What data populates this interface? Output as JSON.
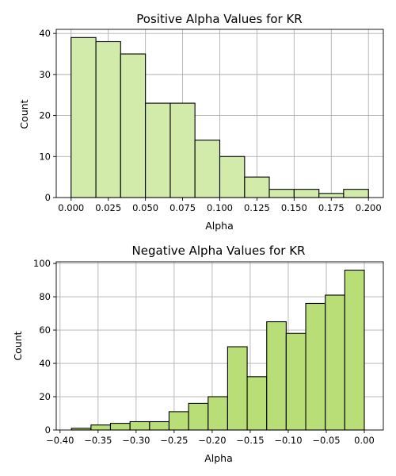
{
  "chart_data": [
    {
      "type": "bar",
      "title": "Positive Alpha Values for KR",
      "xlabel": "Alpha",
      "ylabel": "Count",
      "xlim": [
        -0.01,
        0.21
      ],
      "ylim": [
        0,
        41
      ],
      "xticks": [
        0.0,
        0.025,
        0.05,
        0.075,
        0.1,
        0.125,
        0.15,
        0.175,
        0.2
      ],
      "xtick_labels": [
        "0.000",
        "0.025",
        "0.050",
        "0.075",
        "0.100",
        "0.125",
        "0.150",
        "0.175",
        "0.200"
      ],
      "yticks": [
        0,
        10,
        20,
        30,
        40
      ],
      "ytick_labels": [
        "0",
        "10",
        "20",
        "30",
        "40"
      ],
      "bin_edges": [
        0.0,
        0.0167,
        0.0333,
        0.05,
        0.0667,
        0.0833,
        0.1,
        0.1167,
        0.1333,
        0.15,
        0.1667,
        0.1833,
        0.2
      ],
      "values": [
        39,
        38,
        35,
        23,
        23,
        14,
        10,
        5,
        2,
        2,
        1,
        2
      ],
      "color": "#d2ebaa",
      "grid": true
    },
    {
      "type": "bar",
      "title": "Negative Alpha Values for KR",
      "xlabel": "Alpha",
      "ylabel": "Count",
      "xlim": [
        -0.405,
        0.025
      ],
      "ylim": [
        0,
        101
      ],
      "xticks": [
        -0.4,
        -0.35,
        -0.3,
        -0.25,
        -0.2,
        -0.15,
        -0.1,
        -0.05,
        0.0
      ],
      "xtick_labels": [
        "−0.40",
        "−0.35",
        "−0.30",
        "−0.25",
        "−0.20",
        "−0.15",
        "−0.10",
        "−0.05",
        "0.00"
      ],
      "yticks": [
        0,
        20,
        40,
        60,
        80,
        100
      ],
      "ytick_labels": [
        "0",
        "20",
        "40",
        "60",
        "80",
        "100"
      ],
      "bin_edges": [
        -0.385,
        -0.3593,
        -0.3337,
        -0.308,
        -0.2823,
        -0.2567,
        -0.231,
        -0.2053,
        -0.1797,
        -0.154,
        -0.1283,
        -0.1027,
        -0.077,
        -0.0513,
        -0.0257,
        0.0
      ],
      "values": [
        1,
        3,
        4,
        5,
        5,
        11,
        16,
        20,
        50,
        32,
        65,
        58,
        76,
        81,
        96
      ],
      "color": "#b9de78",
      "grid": true
    }
  ]
}
